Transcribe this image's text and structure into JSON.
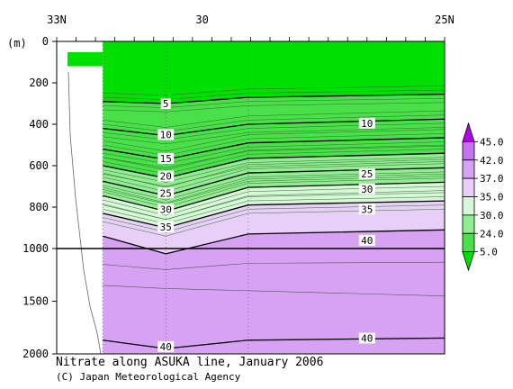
{
  "chart_data": {
    "type": "heatmap",
    "subtype": "oceanographic depth section with contours",
    "title": "Nitrate along ASUKA line, January 2006",
    "credit": "(C) Japan Meteorological Agency",
    "y_unit_label": "(m)",
    "x_axis": {
      "range_lat_N": [
        33,
        25
      ],
      "tick_labels": [
        {
          "lat": 33,
          "text": "33N"
        },
        {
          "lat": 30,
          "text": "30"
        },
        {
          "lat": 25,
          "text": "25N"
        }
      ]
    },
    "y_axis": {
      "range": [
        0,
        2000
      ],
      "break_at": 1000,
      "ticks_upper": [
        0,
        200,
        400,
        600,
        800,
        1000
      ],
      "ticks_lower": [
        1500,
        2000
      ]
    },
    "colorbar": {
      "labels": [
        "45.0",
        "42.0",
        "37.0",
        "35.0",
        "30.0",
        "24.0",
        "5.0"
      ],
      "bins": [
        {
          "from": 45,
          "to": 50,
          "color": "#b100e8"
        },
        {
          "from": 42,
          "to": 45,
          "color": "#c472f0"
        },
        {
          "from": 37,
          "to": 42,
          "color": "#d7a2f4"
        },
        {
          "from": 35,
          "to": 37,
          "color": "#e8cff8"
        },
        {
          "from": 30,
          "to": 35,
          "color": "#d8f7d8"
        },
        {
          "from": 24,
          "to": 30,
          "color": "#92ec92"
        },
        {
          "from": 5,
          "to": 24,
          "color": "#4ae04a"
        },
        {
          "from": 0,
          "to": 5,
          "color": "#00e000"
        }
      ]
    },
    "contour_labels": [
      {
        "text": "5",
        "lat": 30.75,
        "depth": 300
      },
      {
        "text": "10",
        "lat": 30.75,
        "depth": 450
      },
      {
        "text": "15",
        "lat": 30.75,
        "depth": 565
      },
      {
        "text": "20",
        "lat": 30.75,
        "depth": 650
      },
      {
        "text": "25",
        "lat": 30.75,
        "depth": 732
      },
      {
        "text": "30",
        "lat": 30.75,
        "depth": 810
      },
      {
        "text": "35",
        "lat": 30.75,
        "depth": 895
      },
      {
        "text": "40",
        "lat": 30.75,
        "depth": 1930
      },
      {
        "text": "10",
        "lat": 26.6,
        "depth": 395
      },
      {
        "text": "25",
        "lat": 26.6,
        "depth": 640
      },
      {
        "text": "30",
        "lat": 26.6,
        "depth": 712
      },
      {
        "text": "35",
        "lat": 26.6,
        "depth": 810
      },
      {
        "text": "40",
        "lat": 26.6,
        "depth": 960
      },
      {
        "text": "40",
        "lat": 26.6,
        "depth": 1850
      }
    ],
    "nitrate_isoline_depths_m": {
      "lat_stations": [
        32.05,
        30.75,
        29.05,
        25.0
      ],
      "5": [
        290,
        300,
        270,
        255
      ],
      "10": [
        420,
        455,
        400,
        375
      ],
      "15": [
        520,
        570,
        490,
        465
      ],
      "20": [
        600,
        660,
        565,
        540
      ],
      "25": [
        675,
        745,
        635,
        610
      ],
      "30": [
        745,
        820,
        705,
        680
      ],
      "35": [
        830,
        900,
        790,
        770
      ],
      "40": [
        940,
        1050,
        930,
        910
      ],
      "40_deep": [
        1870,
        1950,
        1870,
        1850
      ]
    },
    "grid": "dotted vertical lines at station positions",
    "left_masked_region_lat": [
      33,
      32.05
    ]
  }
}
